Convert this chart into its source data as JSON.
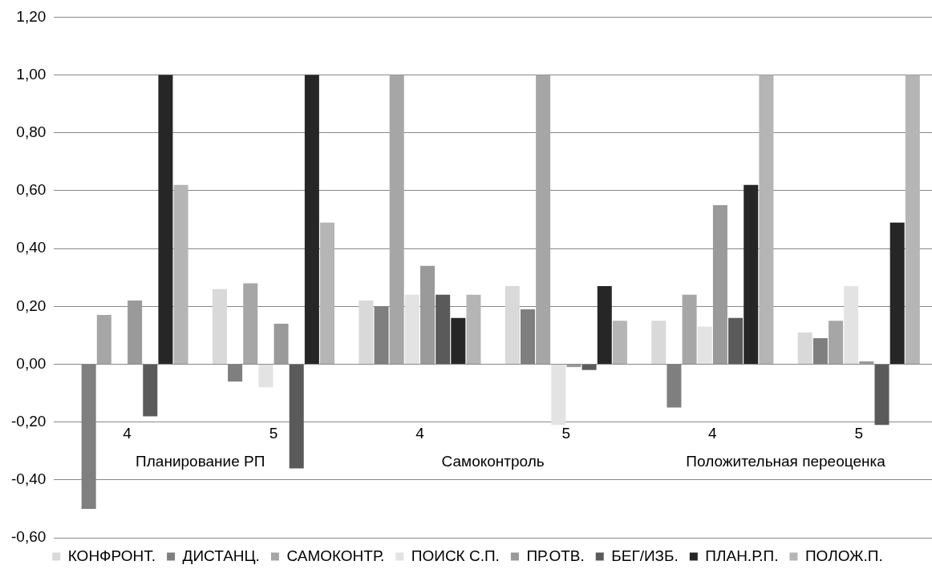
{
  "chart_data": {
    "type": "bar",
    "categories": [
      "4",
      "5",
      "4",
      "5",
      "4",
      "5"
    ],
    "annotations": [
      "Планирование РП",
      "Самоконтроль",
      "Положительная переоценка"
    ],
    "series": [
      {
        "name": "КОНФРОНТ.",
        "color": "#d9d9d9",
        "values": [
          0,
          0.26,
          0.22,
          0.27,
          0.15,
          0.11
        ]
      },
      {
        "name": "ДИСТАНЦ.",
        "color": "#7f7f7f",
        "values": [
          -0.5,
          -0.06,
          0.2,
          0.19,
          -0.15,
          0.09
        ]
      },
      {
        "name": "САМОКОНТР.",
        "color": "#a6a6a6",
        "values": [
          0.17,
          0.28,
          1.0,
          1.0,
          0.24,
          0.15
        ]
      },
      {
        "name": "ПОИСК С.П.",
        "color": "#e3e3e3",
        "values": [
          0,
          -0.08,
          0.24,
          -0.21,
          0.13,
          0.27
        ]
      },
      {
        "name": "ПР.ОТВ.",
        "color": "#9a9a9a",
        "values": [
          0.22,
          0.14,
          0.34,
          -0.01,
          0.55,
          0.01
        ]
      },
      {
        "name": "БЕГ/ИЗБ.",
        "color": "#5a5a5a",
        "values": [
          -0.18,
          -0.36,
          0.24,
          -0.02,
          0.16,
          -0.21
        ]
      },
      {
        "name": "ПЛАН.Р.П.",
        "color": "#262626",
        "values": [
          1.0,
          1.0,
          0.16,
          0.27,
          0.62,
          0.49
        ]
      },
      {
        "name": "ПОЛОЖ.П.",
        "color": "#b5b5b5",
        "values": [
          0.62,
          0.49,
          0.24,
          0.15,
          1.0,
          1.0
        ]
      }
    ],
    "ylim": [
      -0.6,
      1.2
    ],
    "yticks": [
      {
        "value": -0.6,
        "label": "-0,60"
      },
      {
        "value": -0.4,
        "label": "-0,40"
      },
      {
        "value": -0.2,
        "label": "-0,20"
      },
      {
        "value": 0,
        "label": "0,00"
      },
      {
        "value": 0.2,
        "label": "0,20"
      },
      {
        "value": 0.4,
        "label": "0,40"
      },
      {
        "value": 0.6,
        "label": "0,60"
      },
      {
        "value": 0.8,
        "label": "0,80"
      },
      {
        "value": 1.0,
        "label": "1,00"
      },
      {
        "value": 1.2,
        "label": "1,20"
      }
    ],
    "grid": "y",
    "legend": "bottom"
  }
}
